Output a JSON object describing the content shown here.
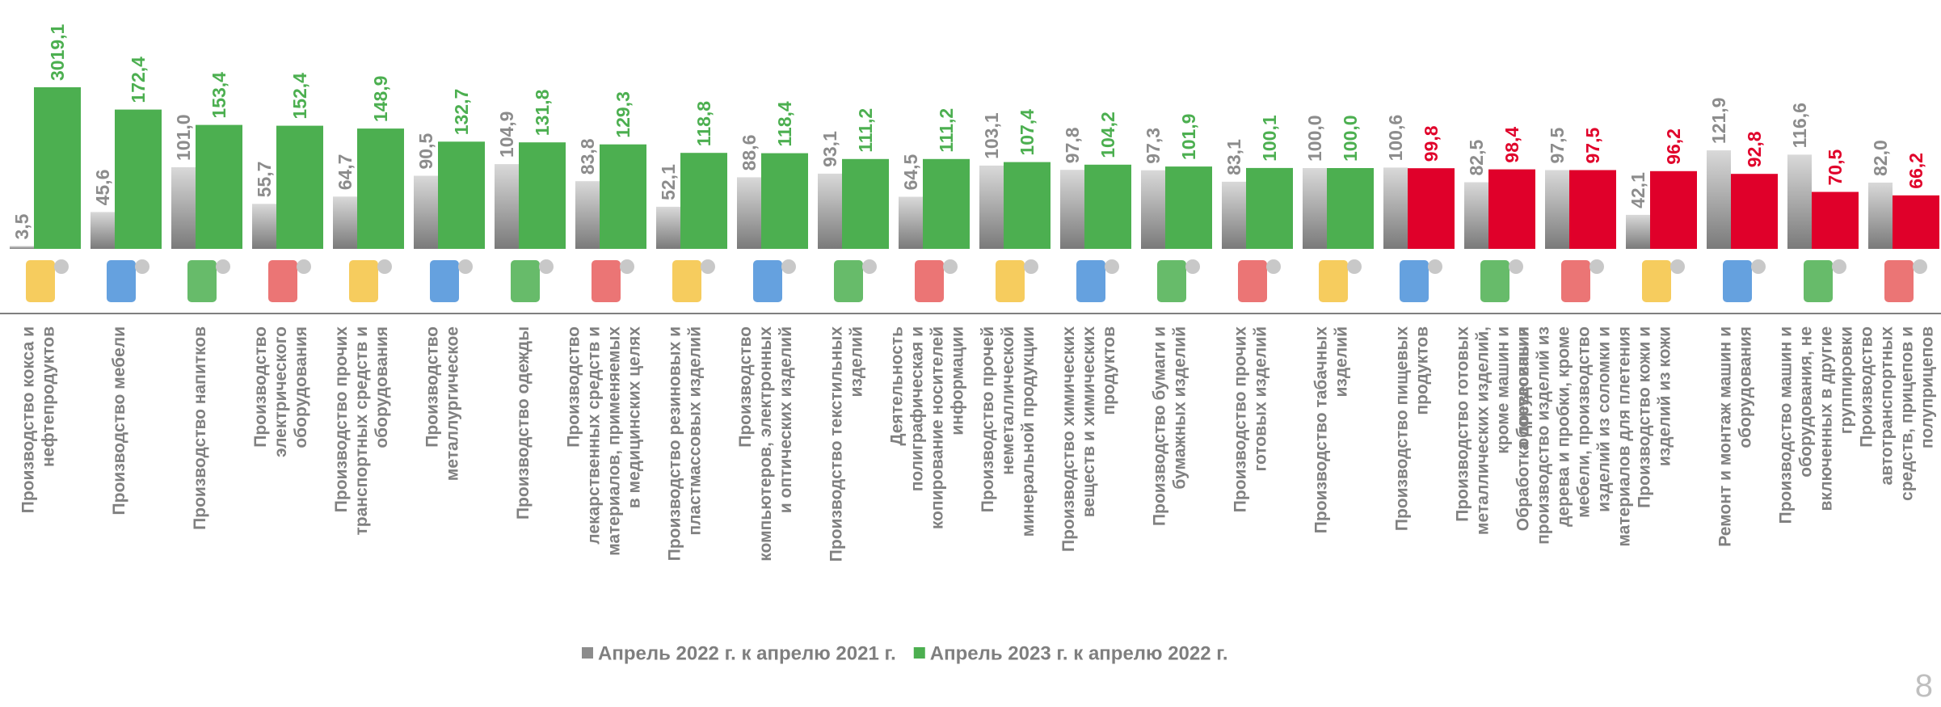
{
  "chart_data": {
    "type": "bar",
    "categories": [
      "Производство кокса и нефтепродуктов",
      "Производство мебели",
      "Производство напитков",
      "Производство электрического оборудования",
      "Производство прочих транспортных средств и оборудования",
      "Производство металлургическое",
      "Производство одежды",
      "Производство лекарственных средств и материалов, применяемых в медицинских целях",
      "Производство резиновых и пластмассовых изделий",
      "Производство компьютеров, электронных и оптических изделий",
      "Производство текстильных изделий",
      "Деятельность полиграфическая и копирование носителей информации",
      "Производство прочей неметаллической минеральной продукции",
      "Производство химических веществ и химических продуктов",
      "Производство бумаги и бумажных изделий",
      "Производство прочих готовых изделий",
      "Производство табачных изделий",
      "Производство пищевых продуктов",
      "Производство готовых металлических изделий, кроме машин и оборудования",
      "Обработка древесины и производство изделий из дерева и пробки, кроме мебели, производство изделий из соломки и материалов для плетения",
      "Производство кожи и изделий из кожи",
      "Ремонт и монтаж машин и оборудования",
      "Производство машин и оборудования, не включенных в другие группировки",
      "Производство автотранспортных средств, прицепов и полуприцепов"
    ],
    "series": [
      {
        "name": "Апрель 2022 г. к апрелю 2021 г.",
        "color": "#8c8c8c",
        "values": [
          3.5,
          45.6,
          101.0,
          55.7,
          64.7,
          90.5,
          104.9,
          83.8,
          52.1,
          88.6,
          93.1,
          64.5,
          103.1,
          97.8,
          97.3,
          83.1,
          100.0,
          100.6,
          82.5,
          97.5,
          42.1,
          121.9,
          116.6,
          82.0
        ],
        "value_labels": [
          "3,5",
          "45,6",
          "101,0",
          "55,7",
          "64,7",
          "90,5",
          "104,9",
          "83,8",
          "52,1",
          "88,6",
          "93,1",
          "64,5",
          "103,1",
          "97,8",
          "97,3",
          "83,1",
          "100,0",
          "100,6",
          "82,5",
          "97,5",
          "42,1",
          "121,9",
          "116,6",
          "82,0"
        ]
      },
      {
        "name": "Апрель 2023 г. к апрелю 2022 г.",
        "color": "#4caf50",
        "colors": [
          "#4caf50",
          "#4caf50",
          "#4caf50",
          "#4caf50",
          "#4caf50",
          "#4caf50",
          "#4caf50",
          "#4caf50",
          "#4caf50",
          "#4caf50",
          "#4caf50",
          "#4caf50",
          "#4caf50",
          "#4caf50",
          "#4caf50",
          "#4caf50",
          "#4caf50",
          "#e0002a",
          "#e0002a",
          "#e0002a",
          "#e0002a",
          "#e0002a",
          "#e0002a",
          "#e0002a"
        ],
        "values": [
          3019.1,
          172.4,
          153.4,
          152.4,
          148.9,
          132.7,
          131.8,
          129.3,
          118.8,
          118.4,
          111.2,
          111.2,
          107.4,
          104.2,
          101.9,
          100.1,
          100.0,
          99.8,
          98.4,
          97.5,
          96.2,
          92.8,
          70.5,
          66.2
        ],
        "value_labels": [
          "3019,1",
          "172,4",
          "153,4",
          "152,4",
          "148,9",
          "132,7",
          "131,8",
          "129,3",
          "118,8",
          "118,4",
          "111,2",
          "111,2",
          "107,4",
          "104,2",
          "101,9",
          "100,1",
          "100,0",
          "99,8",
          "98,4",
          "97,5",
          "96,2",
          "92,8",
          "70,5",
          "66,2"
        ]
      }
    ],
    "ylim": [
      0,
      200
    ],
    "page_number": "8"
  }
}
